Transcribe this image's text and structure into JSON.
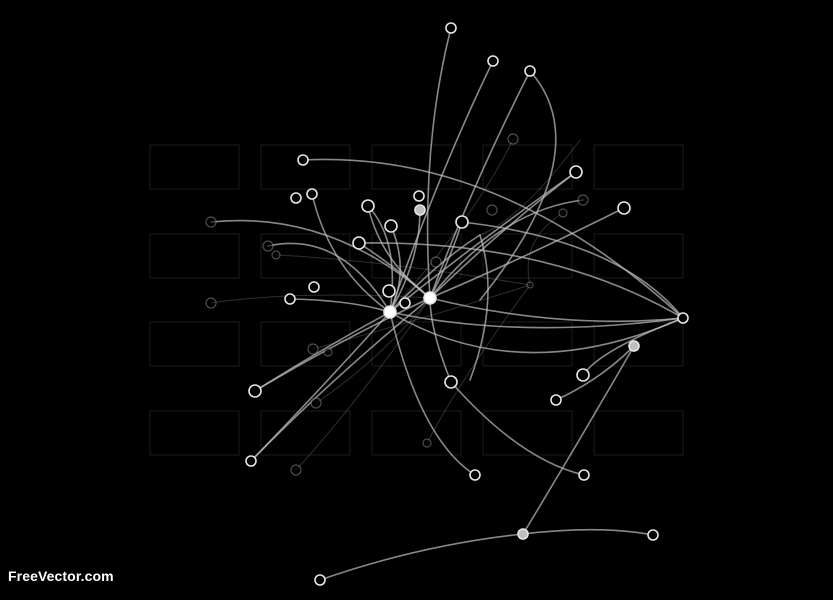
{
  "watermark": {
    "text": "FreeVector.com"
  },
  "colors": {
    "background": "#000000",
    "grid": "#1c1c1c",
    "line": "#bdbdbd",
    "node_stroke": "#e6e6e6",
    "node_fill": "#000000",
    "node_fill_solid": "#bfbfbf"
  }
}
